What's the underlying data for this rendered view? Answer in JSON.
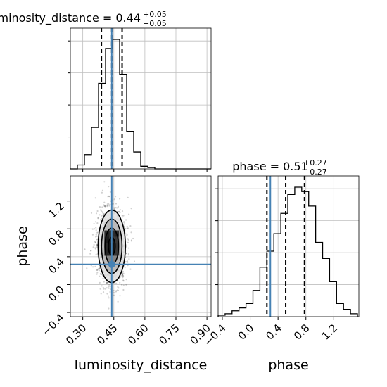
{
  "chart_data": {
    "type": "corner",
    "truth_color": "#4682b4",
    "line_color": "#000000",
    "grid": true,
    "parameters": [
      "luminosity_distance",
      "phase"
    ],
    "axis_labels": {
      "x_left": "luminosity_distance",
      "x_right": "phase",
      "y_lower": "phase"
    },
    "titles": [
      {
        "parameter": "luminosity_distance",
        "base": "luminosity_distance = 0.44",
        "plus": "+0.05",
        "minus": "−0.05"
      },
      {
        "parameter": "phase",
        "base": "phase = 0.51",
        "plus": "+0.27",
        "minus": "−0.27"
      }
    ],
    "ticks": {
      "luminosity_distance": [
        0.3,
        0.45,
        0.6,
        0.75,
        0.9
      ],
      "luminosity_distance_labels": [
        "0.30",
        "0.45",
        "0.60",
        "0.75",
        "0.90"
      ],
      "phase": [
        -0.4,
        0.0,
        0.4,
        0.8,
        1.2
      ],
      "phase_labels": [
        "−0.4",
        "0.0",
        "0.4",
        "0.8",
        "1.2"
      ]
    },
    "ranges": {
      "luminosity_distance": [
        0.24,
        0.92
      ],
      "phase": [
        -0.46,
        1.56
      ]
    },
    "truth": {
      "luminosity_distance": 0.44,
      "phase": 0.29
    },
    "quantiles": {
      "luminosity_distance": [
        0.39,
        0.44,
        0.49
      ],
      "phase": [
        0.24,
        0.51,
        0.78
      ]
    },
    "hist_luminosity_distance": {
      "bin_width": 0.034,
      "bins_start": 0.24,
      "counts": [
        0,
        0.03,
        0.11,
        0.32,
        0.66,
        0.93,
        1.0,
        0.73,
        0.29,
        0.13,
        0.02,
        0.01,
        0,
        0,
        0,
        0,
        0,
        0,
        0,
        0
      ]
    },
    "hist_phase": {
      "bin_width": 0.1,
      "bins_start": -0.46,
      "counts": [
        0.01,
        0.02,
        0.04,
        0.06,
        0.09,
        0.18,
        0.34,
        0.45,
        0.57,
        0.71,
        0.84,
        0.89,
        0.86,
        0.76,
        0.51,
        0.4,
        0.24,
        0.09,
        0.05,
        0.02
      ]
    },
    "density_2d": {
      "center": [
        0.44,
        0.55
      ],
      "sigma": [
        0.033,
        0.26
      ],
      "contour_levels_sigma": [
        0.5,
        1.0,
        1.5,
        2.0
      ]
    }
  }
}
